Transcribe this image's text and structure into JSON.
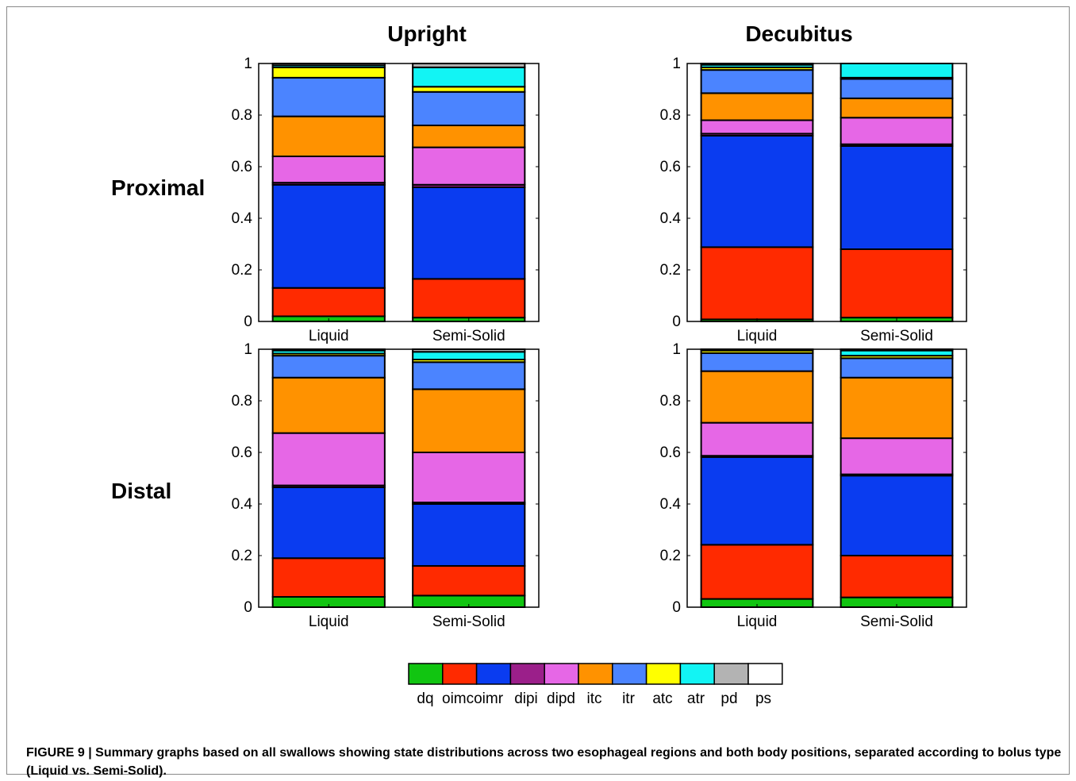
{
  "figure": {
    "column_titles": [
      "Upright",
      "Decubitus"
    ],
    "row_titles": [
      "Proximal",
      "Distal"
    ],
    "caption": "FIGURE 9 | Summary graphs based on all swallows showing state distributions across two esophageal regions and both body positions, separated according to bolus type (Liquid vs. Semi-Solid).",
    "legend": {
      "labels": [
        "dq",
        "oimcoimr",
        "dipi",
        "dipd",
        "itc",
        "itr",
        "atc",
        "atr",
        "pd",
        "ps"
      ],
      "colors": [
        "#11c511",
        "#ff2a00",
        "#0a3cf0",
        "#9b1f8a",
        "#e667e6",
        "#ff9200",
        "#4b84ff",
        "#ffff00",
        "#12f4f4",
        "#b3b3b3",
        "#ffffff"
      ]
    }
  },
  "chart_data": [
    {
      "type": "bar",
      "stacked": true,
      "title": "Upright — Proximal",
      "categories": [
        "Liquid",
        "Semi-Solid"
      ],
      "ylim": [
        0,
        1
      ],
      "yticks": [
        "0",
        "0.2",
        "0.4",
        "0.6",
        "0.8",
        "1"
      ],
      "series": [
        {
          "name": "dq",
          "values": [
            0.02,
            0.015
          ]
        },
        {
          "name": "oimcoimr",
          "values": [
            0.11,
            0.15
          ]
        },
        {
          "name": "dipi",
          "values": [
            0.4,
            0.355
          ]
        },
        {
          "name": "dipd",
          "values": [
            0.008,
            0.01
          ]
        },
        {
          "name": "itc",
          "values": [
            0.102,
            0.145
          ]
        },
        {
          "name": "itr",
          "values": [
            0.155,
            0.085
          ]
        },
        {
          "name": "atc",
          "values": [
            0.15,
            0.13
          ]
        },
        {
          "name": "atr",
          "values": [
            0.04,
            0.02
          ]
        },
        {
          "name": "pd",
          "values": [
            0.008,
            0.075
          ]
        },
        {
          "name": "ps",
          "values": [
            0.007,
            0.015
          ]
        }
      ]
    },
    {
      "type": "bar",
      "stacked": true,
      "title": "Decubitus — Proximal",
      "categories": [
        "Liquid",
        "Semi-Solid"
      ],
      "ylim": [
        0,
        1
      ],
      "yticks": [
        "0",
        "0.2",
        "0.4",
        "0.6",
        "0.8",
        "1"
      ],
      "series": [
        {
          "name": "dq",
          "values": [
            0.008,
            0.015
          ]
        },
        {
          "name": "oimcoimr",
          "values": [
            0.28,
            0.265
          ]
        },
        {
          "name": "dipi",
          "values": [
            0.432,
            0.4
          ]
        },
        {
          "name": "dipd",
          "values": [
            0.008,
            0.007
          ]
        },
        {
          "name": "itc",
          "values": [
            0.052,
            0.103
          ]
        },
        {
          "name": "itr",
          "values": [
            0.105,
            0.075
          ]
        },
        {
          "name": "atc",
          "values": [
            0.09,
            0.075
          ]
        },
        {
          "name": "atr",
          "values": [
            0.01,
            0.005
          ]
        },
        {
          "name": "pd",
          "values": [
            0.01,
            0.055
          ]
        },
        {
          "name": "ps",
          "values": [
            0.005,
            0.0
          ]
        }
      ]
    },
    {
      "type": "bar",
      "stacked": true,
      "title": "Upright — Distal",
      "categories": [
        "Liquid",
        "Semi-Solid"
      ],
      "ylim": [
        0,
        1
      ],
      "yticks": [
        "0",
        "0.2",
        "0.4",
        "0.6",
        "0.8",
        "1"
      ],
      "series": [
        {
          "name": "dq",
          "values": [
            0.04,
            0.045
          ]
        },
        {
          "name": "oimcoimr",
          "values": [
            0.15,
            0.115
          ]
        },
        {
          "name": "dipi",
          "values": [
            0.275,
            0.24
          ]
        },
        {
          "name": "dipd",
          "values": [
            0.007,
            0.006
          ]
        },
        {
          "name": "itc",
          "values": [
            0.203,
            0.194
          ]
        },
        {
          "name": "itr",
          "values": [
            0.215,
            0.245
          ]
        },
        {
          "name": "atc",
          "values": [
            0.085,
            0.105
          ]
        },
        {
          "name": "atr",
          "values": [
            0.008,
            0.01
          ]
        },
        {
          "name": "pd",
          "values": [
            0.012,
            0.03
          ]
        },
        {
          "name": "ps",
          "values": [
            0.005,
            0.01
          ]
        }
      ]
    },
    {
      "type": "bar",
      "stacked": true,
      "title": "Decubitus — Distal",
      "categories": [
        "Liquid",
        "Semi-Solid"
      ],
      "ylim": [
        0,
        1
      ],
      "yticks": [
        "0",
        "0.2",
        "0.4",
        "0.6",
        "0.8",
        "1"
      ],
      "series": [
        {
          "name": "dq",
          "values": [
            0.032,
            0.038
          ]
        },
        {
          "name": "oimcoimr",
          "values": [
            0.21,
            0.162
          ]
        },
        {
          "name": "dipi",
          "values": [
            0.34,
            0.31
          ]
        },
        {
          "name": "dipd",
          "values": [
            0.005,
            0.005
          ]
        },
        {
          "name": "itc",
          "values": [
            0.128,
            0.14
          ]
        },
        {
          "name": "itr",
          "values": [
            0.2,
            0.235
          ]
        },
        {
          "name": "atc",
          "values": [
            0.07,
            0.075
          ]
        },
        {
          "name": "atr",
          "values": [
            0.01,
            0.01
          ]
        },
        {
          "name": "pd",
          "values": [
            0.005,
            0.02
          ]
        },
        {
          "name": "ps",
          "values": [
            0.0,
            0.005
          ]
        }
      ]
    }
  ]
}
